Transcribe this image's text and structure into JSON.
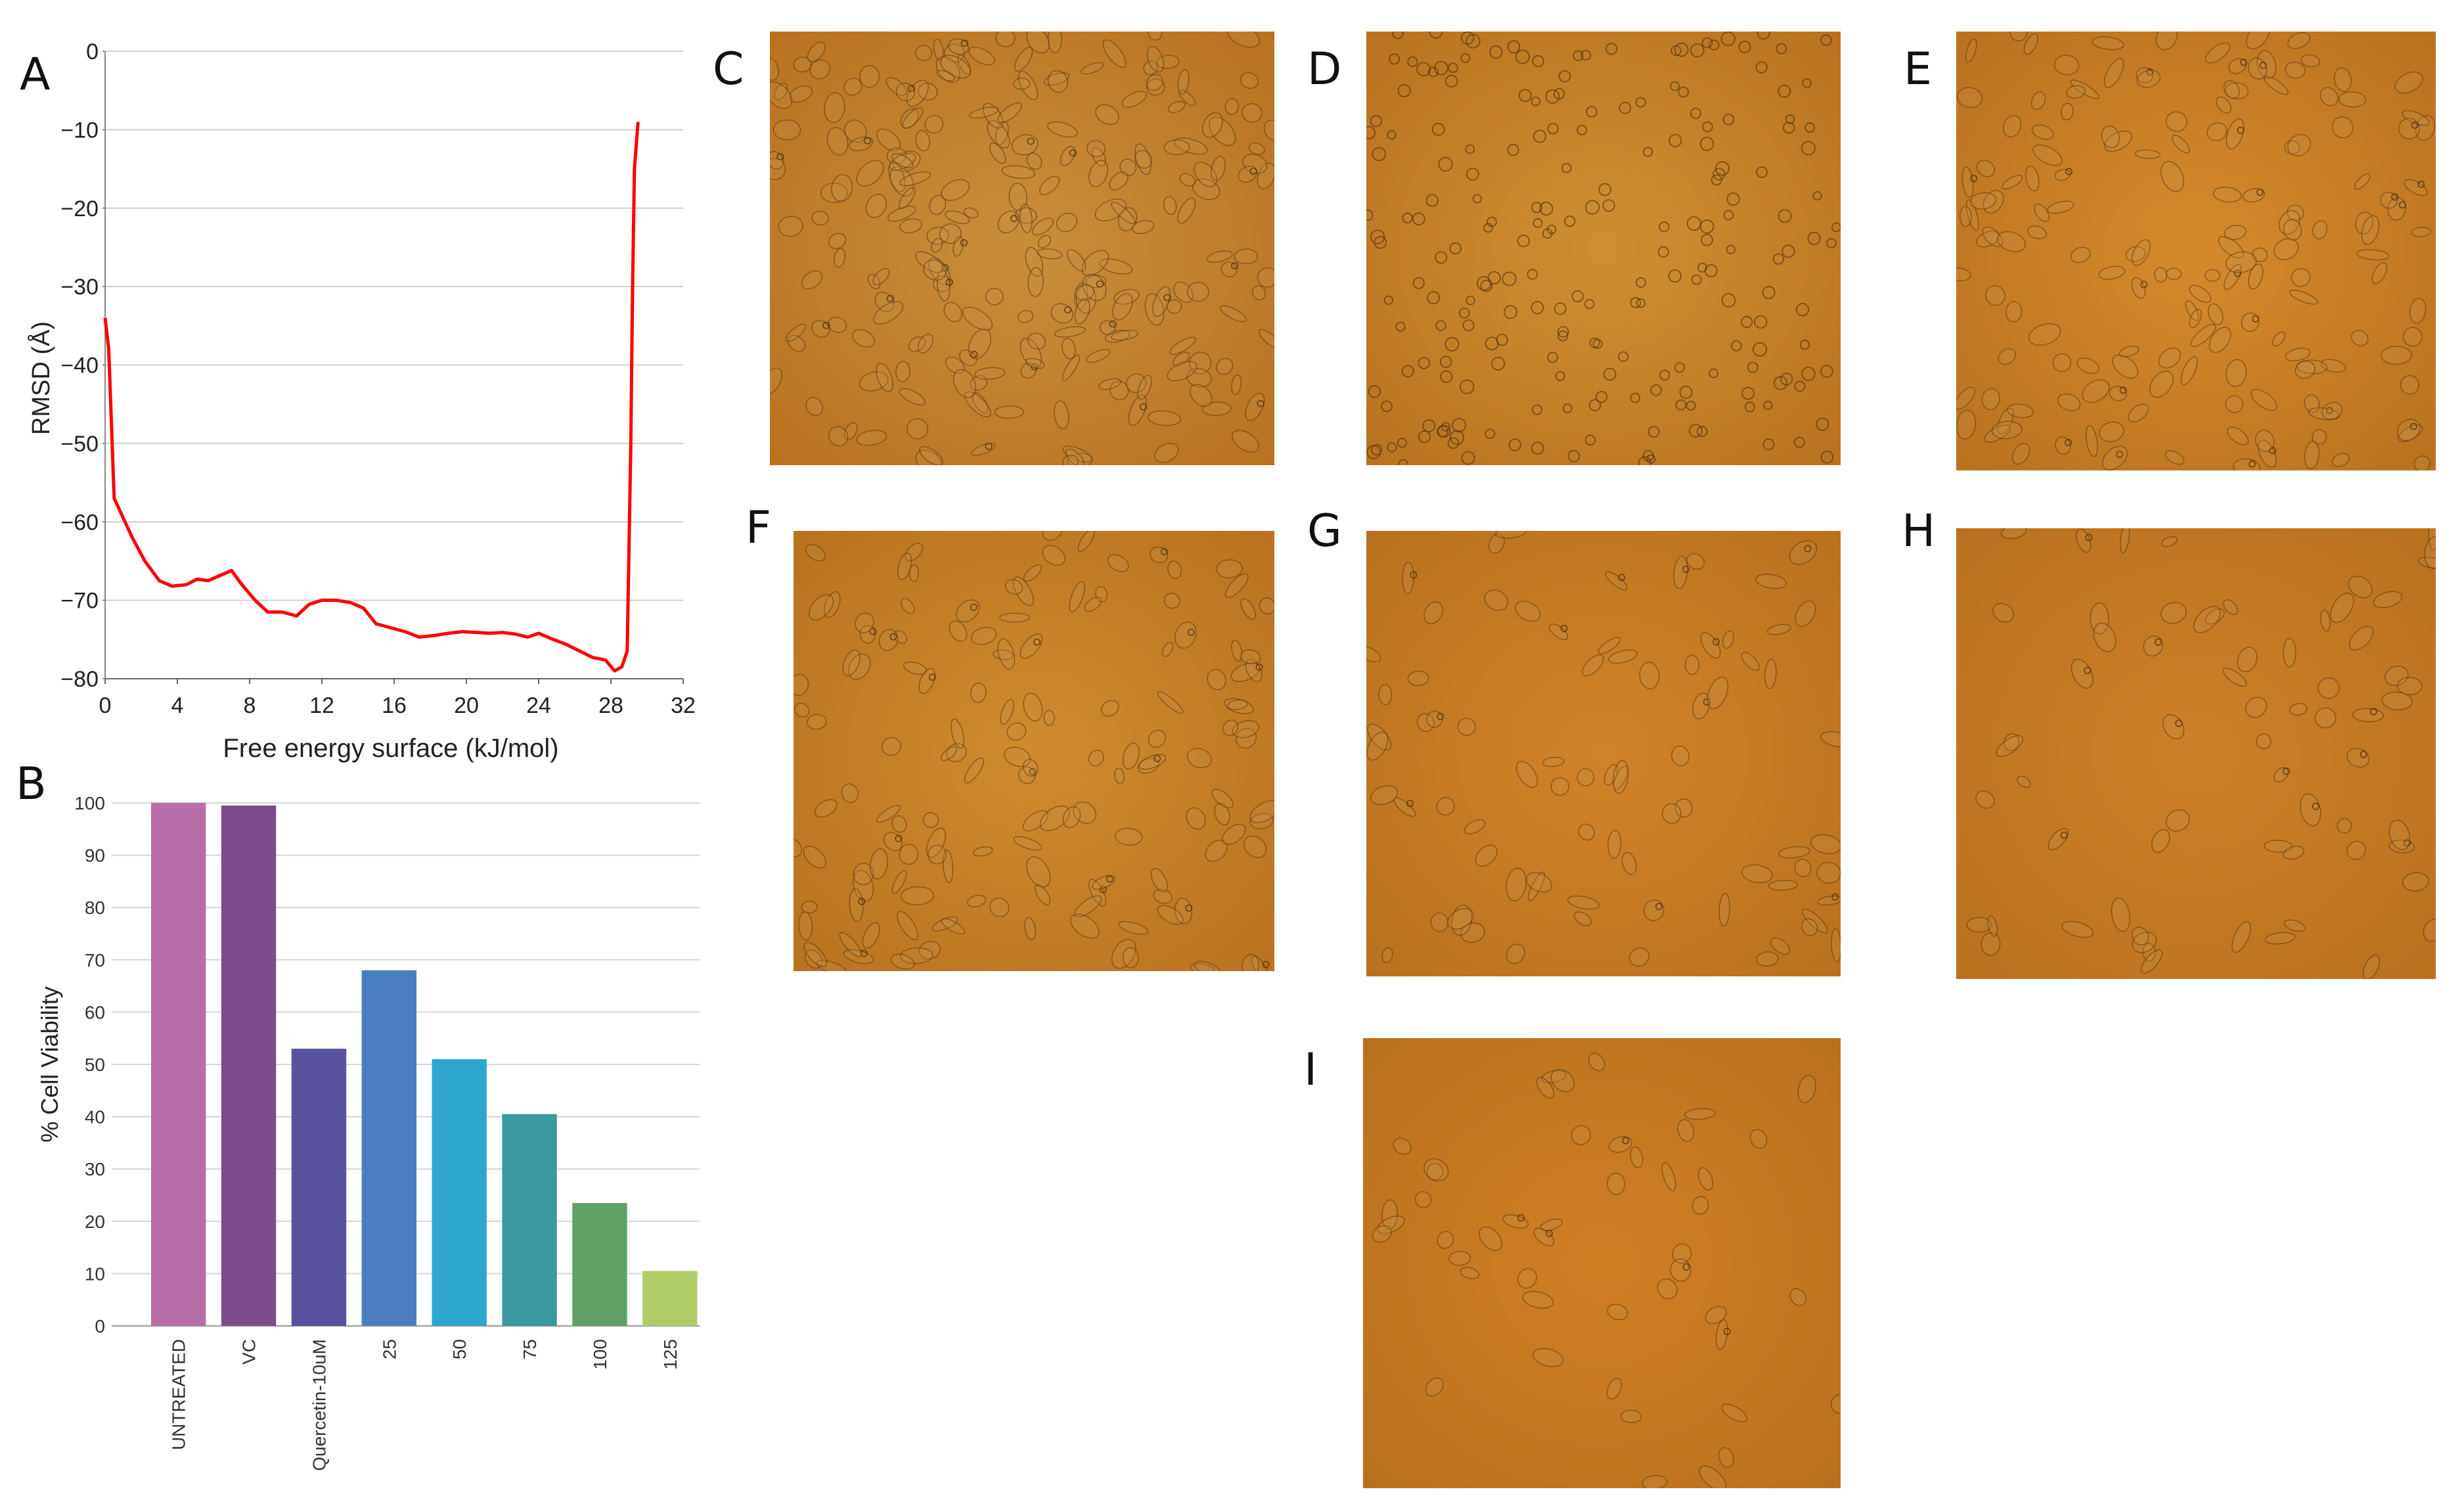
{
  "panel_labels": [
    "A",
    "B",
    "C",
    "D",
    "E",
    "F",
    "G",
    "H",
    "I"
  ],
  "chart_data": [
    {
      "panel": "A",
      "type": "line",
      "xlabel": "Free energy surface (kJ/mol)",
      "ylabel": "RMSD (Å)",
      "xlim": [
        0,
        32
      ],
      "ylim": [
        -80,
        0
      ],
      "x_ticks": [
        0,
        4,
        8,
        12,
        16,
        20,
        24,
        28,
        32
      ],
      "y_ticks": [
        0,
        -10,
        -20,
        -30,
        -40,
        -50,
        -60,
        -70,
        -80
      ],
      "grid": "horizontal",
      "series": [
        {
          "color": "#ff0000",
          "x": [
            0,
            0.2,
            0.5,
            0.9,
            1.5,
            2.2,
            3.0,
            3.7,
            4.5,
            5.1,
            5.7,
            6.4,
            7.0,
            7.5,
            8.3,
            9.0,
            9.8,
            10.6,
            11.3,
            12.0,
            12.8,
            13.6,
            14.3,
            15.0,
            15.8,
            16.6,
            17.4,
            18.2,
            19.0,
            19.8,
            20.6,
            21.3,
            22.0,
            22.7,
            23.4,
            24.0,
            24.7,
            25.5,
            26.3,
            27.0,
            27.7,
            28.2,
            28.6,
            28.9,
            29.1,
            29.2,
            29.3,
            29.5
          ],
          "y": [
            -34,
            -38,
            -57,
            -59,
            -62,
            -65,
            -67.5,
            -68.2,
            -68,
            -67.3,
            -67.5,
            -66.8,
            -66.2,
            -67.8,
            -70,
            -71.5,
            -71.5,
            -72,
            -70.5,
            -70,
            -70,
            -70.3,
            -71,
            -73,
            -73.5,
            -74,
            -74.7,
            -74.5,
            -74.2,
            -74,
            -74.1,
            -74.2,
            -74.1,
            -74.3,
            -74.7,
            -74.2,
            -74.9,
            -75.6,
            -76.5,
            -77.3,
            -77.6,
            -79,
            -78.5,
            -76.5,
            -50,
            -30,
            -15,
            -9
          ]
        }
      ]
    },
    {
      "panel": "B",
      "type": "bar",
      "ylabel": "% Cell Viability",
      "ylim": [
        0,
        100
      ],
      "y_ticks": [
        0,
        10,
        20,
        30,
        40,
        50,
        60,
        70,
        80,
        90,
        100
      ],
      "grid": "horizontal",
      "categories": [
        "UNTREATED",
        "VC",
        "Quercetin-10uM",
        "25",
        "50",
        "75",
        "100",
        "125"
      ],
      "values": [
        100,
        99.5,
        53,
        68,
        51,
        40.5,
        23.5,
        10.5
      ],
      "colors": [
        "#b76ea6",
        "#7b4c8a",
        "#5852a0",
        "#4a7ec0",
        "#2ea6d0",
        "#3a9a9e",
        "#5ea066",
        "#b0cc68"
      ]
    }
  ],
  "images": [
    {
      "label": "C",
      "name": "micrograph-c",
      "tone": "#c98d3a",
      "cell": "spread",
      "density": 0.9
    },
    {
      "label": "D",
      "name": "micrograph-d",
      "tone": "#cf8e32",
      "cell": "round",
      "density": 0.8
    },
    {
      "label": "E",
      "name": "micrograph-e",
      "tone": "#d5892c",
      "cell": "spread",
      "density": 0.6
    },
    {
      "label": "F",
      "name": "micrograph-f",
      "tone": "#cf8a2e",
      "cell": "spread",
      "density": 0.55
    },
    {
      "label": "G",
      "name": "micrograph-g",
      "tone": "#d08228",
      "cell": "spread",
      "density": 0.3
    },
    {
      "label": "H",
      "name": "micrograph-h",
      "tone": "#cd7f28",
      "cell": "spread",
      "density": 0.25
    },
    {
      "label": "I",
      "name": "micrograph-i",
      "tone": "#d07e24",
      "cell": "spread",
      "density": 0.18
    }
  ]
}
